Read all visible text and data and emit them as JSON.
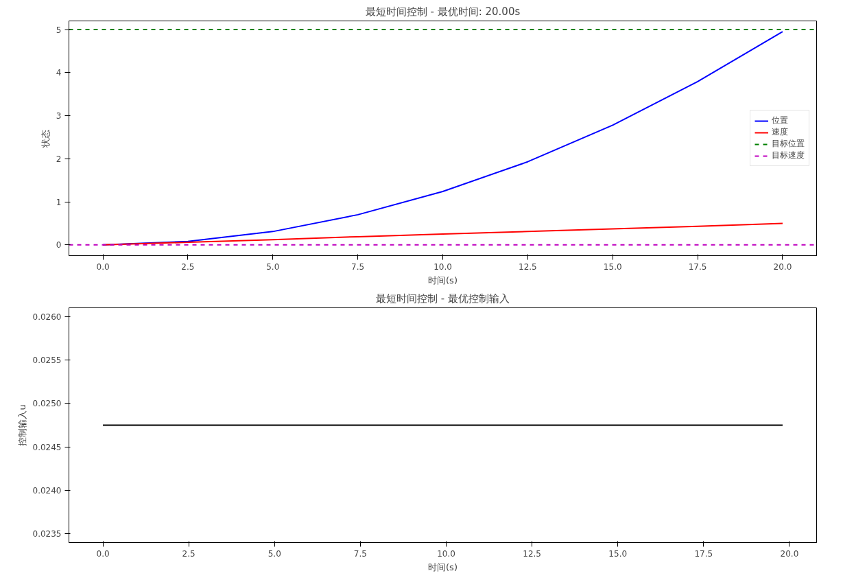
{
  "chart_data": [
    {
      "type": "line",
      "title": "最短时间控制 - 最优时间: 20.00s",
      "xlabel": "时间(s)",
      "ylabel": "状态",
      "x": [
        0,
        2.5,
        5,
        7.5,
        10,
        12.5,
        15,
        17.5,
        20
      ],
      "series": [
        {
          "name": "位置",
          "color": "#0000ff",
          "values": [
            0,
            0.08,
            0.31,
            0.7,
            1.24,
            1.93,
            2.78,
            3.79,
            4.95
          ]
        },
        {
          "name": "速度",
          "color": "#ff0000",
          "values": [
            0,
            0.06,
            0.12,
            0.19,
            0.25,
            0.31,
            0.37,
            0.43,
            0.5
          ]
        }
      ],
      "ref_lines": [
        {
          "axis": "y",
          "value": 5,
          "label": "目标位置",
          "color": "#008000",
          "line_style": "dashed"
        },
        {
          "axis": "y",
          "value": 0,
          "label": "目标速度",
          "color": "#bf00bf",
          "line_style": "dashed"
        }
      ],
      "xlim": [
        -1,
        21
      ],
      "ylim": [
        -0.25,
        5.2
      ],
      "xticks": [
        {
          "value": 0,
          "label": "0.0"
        },
        {
          "value": 2.5,
          "label": "2.5"
        },
        {
          "value": 5,
          "label": "5.0"
        },
        {
          "value": 7.5,
          "label": "7.5"
        },
        {
          "value": 10,
          "label": "10.0"
        },
        {
          "value": 12.5,
          "label": "12.5"
        },
        {
          "value": 15,
          "label": "15.0"
        },
        {
          "value": 17.5,
          "label": "17.5"
        },
        {
          "value": 20,
          "label": "20.0"
        }
      ],
      "yticks": [
        0,
        1,
        2,
        3,
        4,
        5
      ],
      "legend": "right",
      "grid": false
    },
    {
      "type": "line",
      "title": "最短时间控制 - 最优控制输入",
      "xlabel": "时间(s)",
      "ylabel": "控制输入u",
      "x": [
        0,
        19.8
      ],
      "series": [
        {
          "color": "#000000",
          "values": [
            0.02475,
            0.02475
          ]
        }
      ],
      "xlim": [
        -0.99,
        20.79
      ],
      "ylim": [
        0.0234,
        0.0261
      ],
      "xticks": [
        {
          "value": 0,
          "label": "0.0"
        },
        {
          "value": 2.5,
          "label": "2.5"
        },
        {
          "value": 5,
          "label": "5.0"
        },
        {
          "value": 7.5,
          "label": "7.5"
        },
        {
          "value": 10,
          "label": "10.0"
        },
        {
          "value": 12.5,
          "label": "12.5"
        },
        {
          "value": 15,
          "label": "15.0"
        },
        {
          "value": 17.5,
          "label": "17.5"
        },
        {
          "value": 20,
          "label": "20.0"
        }
      ],
      "yticks": [
        0.0235,
        {
          "value": 0.024,
          "label": "0.0240"
        },
        0.0245,
        {
          "value": 0.025,
          "label": "0.0250"
        },
        0.0255,
        {
          "value": 0.026,
          "label": "0.0260"
        }
      ],
      "grid": false
    }
  ]
}
